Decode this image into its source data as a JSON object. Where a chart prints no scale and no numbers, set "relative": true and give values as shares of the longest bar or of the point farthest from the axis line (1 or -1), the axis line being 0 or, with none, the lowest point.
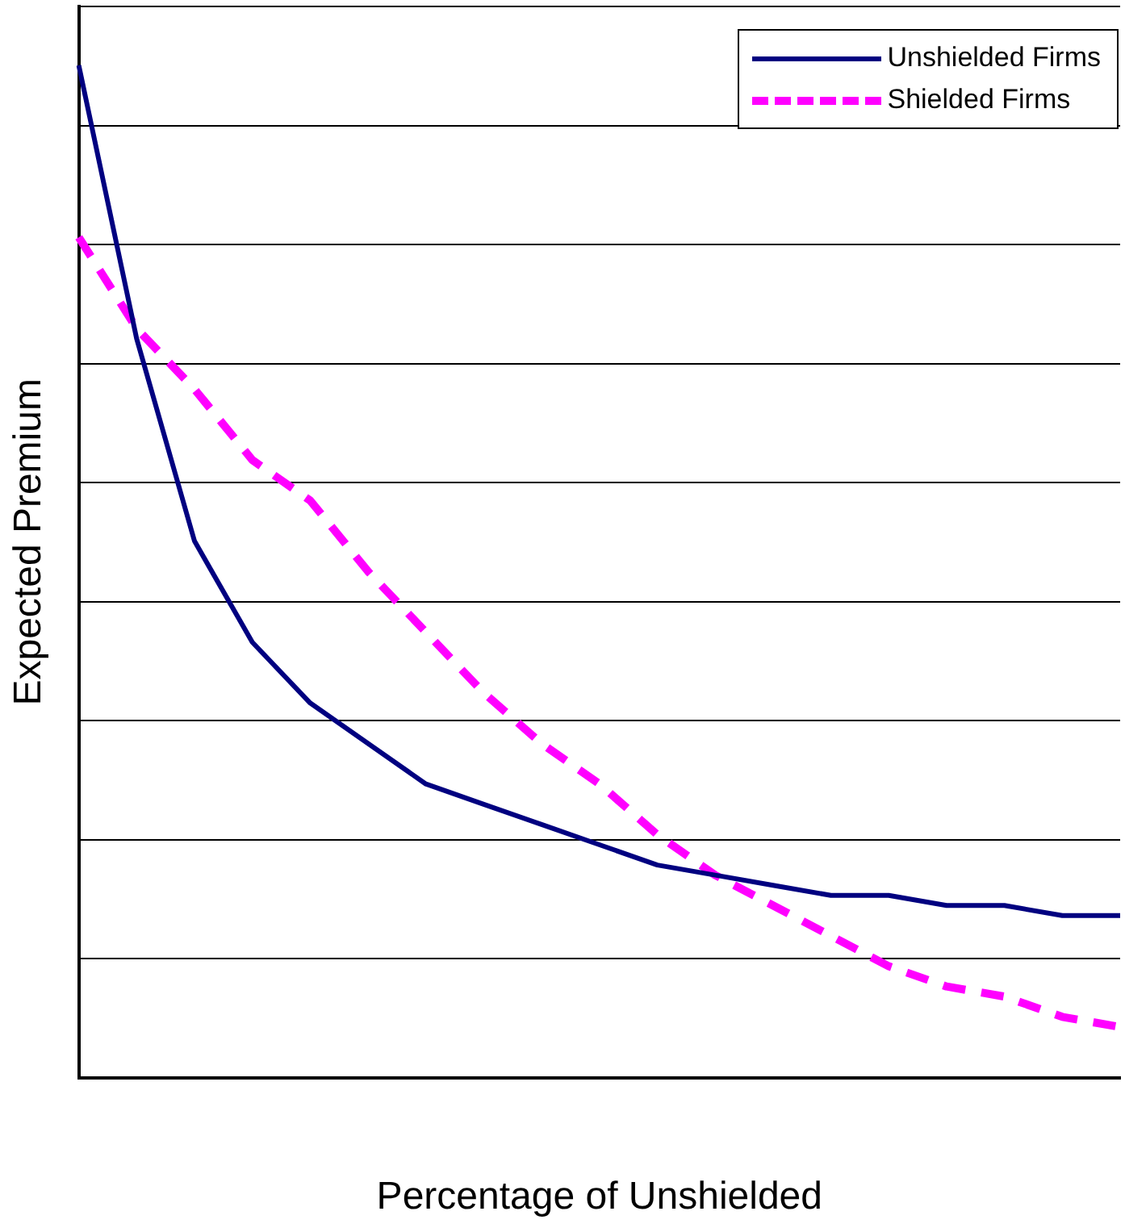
{
  "chart_data": {
    "type": "line",
    "xlabel": "Percentage of Unshielded",
    "ylabel": "Expected Premium",
    "relative": true,
    "grid": "y",
    "legend": "top right",
    "marker": "none",
    "categories": [
      null,
      null,
      null,
      null,
      null,
      null,
      null,
      null,
      null,
      null,
      null,
      null,
      null,
      null,
      null,
      null,
      null,
      null,
      null
    ],
    "series": [
      {
        "name": "Unshielded Firms",
        "color": "#000080",
        "line_style": "solid",
        "values": [
          1.0,
          0.73,
          0.53,
          0.43,
          0.37,
          0.33,
          0.29,
          0.27,
          0.25,
          0.23,
          0.21,
          0.2,
          0.19,
          0.18,
          0.18,
          0.17,
          0.17,
          0.16,
          0.16
        ]
      },
      {
        "name": "Shielded Firms",
        "color": "#ff00ff",
        "line_style": "dashed",
        "values": [
          0.83,
          0.74,
          0.68,
          0.61,
          0.57,
          0.5,
          0.44,
          0.38,
          0.33,
          0.29,
          0.24,
          0.2,
          0.17,
          0.14,
          0.11,
          0.09,
          0.08,
          0.06,
          0.05
        ]
      }
    ]
  }
}
